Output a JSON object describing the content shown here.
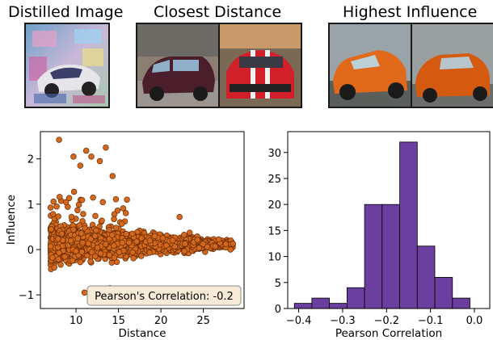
{
  "headers": {
    "distilled": "Distilled Image",
    "closest": "Closest Distance",
    "influence": "Highest Influence"
  },
  "colors": {
    "scatter_fill": "#d2691e",
    "scatter_edge": "#6b2a00",
    "hist_fill": "#6a3fa0",
    "annotation_bg": "#f7ead6"
  },
  "chart_data": [
    {
      "type": "scatter",
      "xlabel": "Distance",
      "ylabel": "Influence",
      "xlim": [
        5.8,
        29.8
      ],
      "ylim": [
        -1.3,
        2.6
      ],
      "xticks": [
        10,
        15,
        20,
        25
      ],
      "yticks": [
        -1,
        0,
        1,
        2
      ],
      "annotation": "Pearson's Correlation: -0.2",
      "grid": false,
      "notable_points": [
        {
          "x": 8.0,
          "y": 2.42
        },
        {
          "x": 9.7,
          "y": 2.05
        },
        {
          "x": 10.5,
          "y": 1.85
        },
        {
          "x": 11.2,
          "y": 2.18
        },
        {
          "x": 11.8,
          "y": 2.05
        },
        {
          "x": 12.8,
          "y": 1.95
        },
        {
          "x": 13.5,
          "y": 2.25
        },
        {
          "x": 14.3,
          "y": 1.62
        },
        {
          "x": 16.0,
          "y": 1.1
        },
        {
          "x": 22.2,
          "y": 0.72
        },
        {
          "x": 7.2,
          "y": -0.18
        },
        {
          "x": 11.0,
          "y": -0.95
        },
        {
          "x": 14.0,
          "y": -0.85
        },
        {
          "x": 16.3,
          "y": -0.92
        },
        {
          "x": 28.2,
          "y": 0.0
        }
      ]
    },
    {
      "type": "histogram",
      "xlabel": "Pearson Correlation",
      "ylabel": "",
      "xlim": [
        -0.425,
        0.035
      ],
      "ylim": [
        0,
        34
      ],
      "xticks": [
        -0.4,
        -0.3,
        -0.2,
        -0.1,
        0.0
      ],
      "yticks": [
        0,
        5,
        10,
        15,
        20,
        25,
        30
      ],
      "bins": [
        {
          "start": -0.41,
          "end": -0.37,
          "count": 1
        },
        {
          "start": -0.37,
          "end": -0.33,
          "count": 2
        },
        {
          "start": -0.33,
          "end": -0.29,
          "count": 1
        },
        {
          "start": -0.29,
          "end": -0.25,
          "count": 4
        },
        {
          "start": -0.25,
          "end": -0.21,
          "count": 20
        },
        {
          "start": -0.21,
          "end": -0.17,
          "count": 20
        },
        {
          "start": -0.17,
          "end": -0.13,
          "count": 32
        },
        {
          "start": -0.13,
          "end": -0.09,
          "count": 12
        },
        {
          "start": -0.09,
          "end": -0.05,
          "count": 6
        },
        {
          "start": -0.05,
          "end": -0.01,
          "count": 2
        }
      ]
    }
  ]
}
